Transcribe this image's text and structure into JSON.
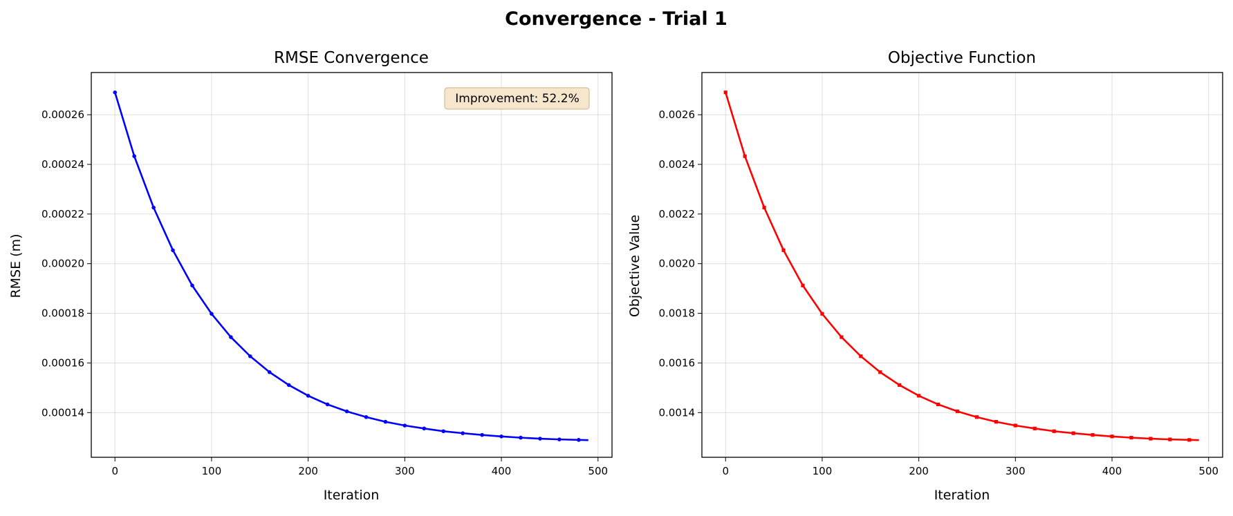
{
  "figure": {
    "title": "Convergence - Trial 1"
  },
  "chart_data": [
    {
      "type": "line",
      "title": "RMSE Convergence",
      "xlabel": "Iteration",
      "ylabel": "RMSE (m)",
      "xlim": [
        -24.5,
        514.5
      ],
      "ylim": [
        0.000122,
        0.000277
      ],
      "xticks": [
        0,
        100,
        200,
        300,
        400,
        500
      ],
      "xtick_labels": [
        "0",
        "100",
        "200",
        "300",
        "400",
        "500"
      ],
      "yticks": [
        0.00014,
        0.00016,
        0.00018,
        0.0002,
        0.00022,
        0.00024,
        0.00026
      ],
      "ytick_labels": [
        "0.00014",
        "0.00016",
        "0.00018",
        "0.00020",
        "0.00022",
        "0.00024",
        "0.00026"
      ],
      "grid": true,
      "color": "#0000ff",
      "marker": "circle",
      "annotation": "Improvement: 52.2%",
      "annotation_position": "top-right",
      "annotation_bg": "#f5e6cc",
      "series": [
        {
          "x": [
            0,
            20,
            40,
            60,
            80,
            100,
            120,
            140,
            160,
            180,
            200,
            220,
            240,
            260,
            280,
            300,
            320,
            340,
            360,
            380,
            400,
            420,
            440,
            460,
            480,
            490
          ],
          "y": [
            0.000269,
            0.0002433,
            0.0002226,
            0.0002054,
            0.0001912,
            0.0001798,
            0.0001704,
            0.0001627,
            0.0001563,
            0.0001511,
            0.0001468,
            0.0001433,
            0.0001405,
            0.0001382,
            0.0001363,
            0.0001348,
            0.0001336,
            0.0001325,
            0.0001317,
            0.000131,
            0.0001304,
            0.0001299,
            0.0001295,
            0.0001292,
            0.000129,
            0.0001289
          ]
        }
      ]
    },
    {
      "type": "line",
      "title": "Objective Function",
      "xlabel": "Iteration",
      "ylabel": "Objective Value",
      "xlim": [
        -24.5,
        514.5
      ],
      "ylim": [
        0.00122,
        0.00277
      ],
      "xticks": [
        0,
        100,
        200,
        300,
        400,
        500
      ],
      "xtick_labels": [
        "0",
        "100",
        "200",
        "300",
        "400",
        "500"
      ],
      "yticks": [
        0.0014,
        0.0016,
        0.0018,
        0.002,
        0.0022,
        0.0024,
        0.0026
      ],
      "ytick_labels": [
        "0.0014",
        "0.0016",
        "0.0018",
        "0.0020",
        "0.0022",
        "0.0024",
        "0.0026"
      ],
      "grid": true,
      "color": "#ff0000",
      "marker": "square",
      "series": [
        {
          "x": [
            0,
            20,
            40,
            60,
            80,
            100,
            120,
            140,
            160,
            180,
            200,
            220,
            240,
            260,
            280,
            300,
            320,
            340,
            360,
            380,
            400,
            420,
            440,
            460,
            480,
            490
          ],
          "y": [
            0.00269,
            0.002433,
            0.002226,
            0.002054,
            0.001912,
            0.001798,
            0.001704,
            0.001627,
            0.001563,
            0.001511,
            0.001468,
            0.001433,
            0.001405,
            0.001382,
            0.001363,
            0.001348,
            0.001336,
            0.001325,
            0.001317,
            0.00131,
            0.001304,
            0.001299,
            0.001295,
            0.001292,
            0.00129,
            0.001289
          ]
        }
      ]
    }
  ]
}
